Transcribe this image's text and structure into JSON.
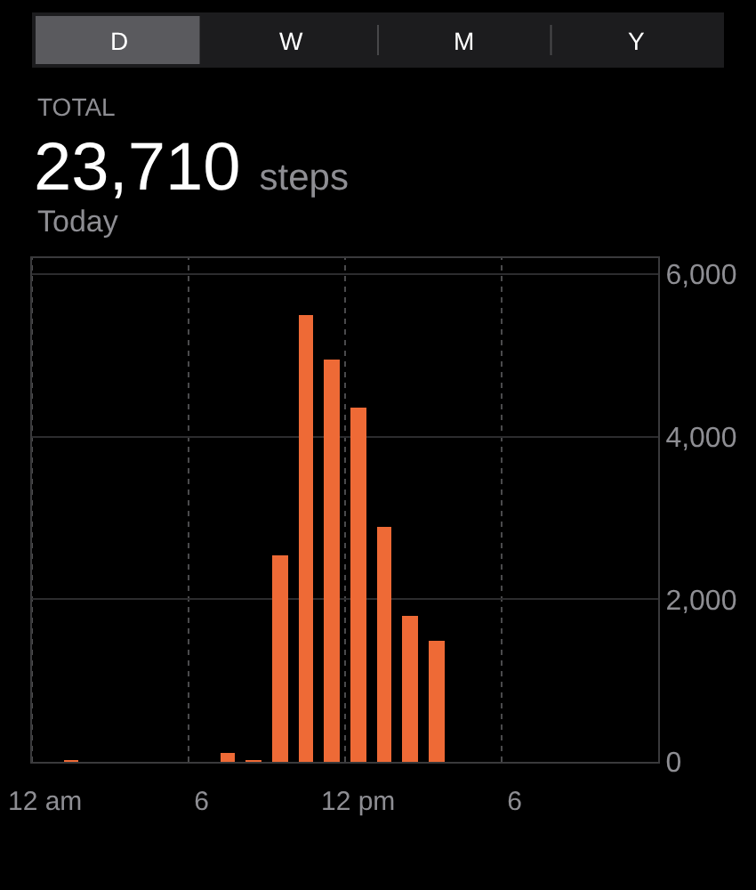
{
  "chart_data": {
    "type": "bar",
    "title": "23,710 steps",
    "subtitle": "Today",
    "annotations": [
      "D",
      "W",
      "M",
      "Y",
      "TOTAL"
    ],
    "categories": [
      "12 am",
      null,
      null,
      null,
      null,
      null,
      "6",
      null,
      null,
      null,
      null,
      null,
      "12 pm",
      null,
      null,
      null,
      null,
      null,
      "6",
      null,
      null,
      null,
      null,
      null
    ],
    "values": [
      null,
      20,
      null,
      null,
      null,
      null,
      null,
      120,
      20,
      2550,
      5500,
      4950,
      4350,
      2900,
      1800,
      1500,
      null,
      null,
      null,
      null,
      null,
      null,
      null,
      null
    ],
    "color": "#ee6a36",
    "ylim": [
      0,
      6200
    ],
    "yticks": [
      0,
      {
        "value": 2000,
        "label": "2,000"
      },
      {
        "value": 4000,
        "label": "4,000"
      },
      {
        "value": 6000,
        "label": "6,000"
      }
    ],
    "grid": true
  }
}
